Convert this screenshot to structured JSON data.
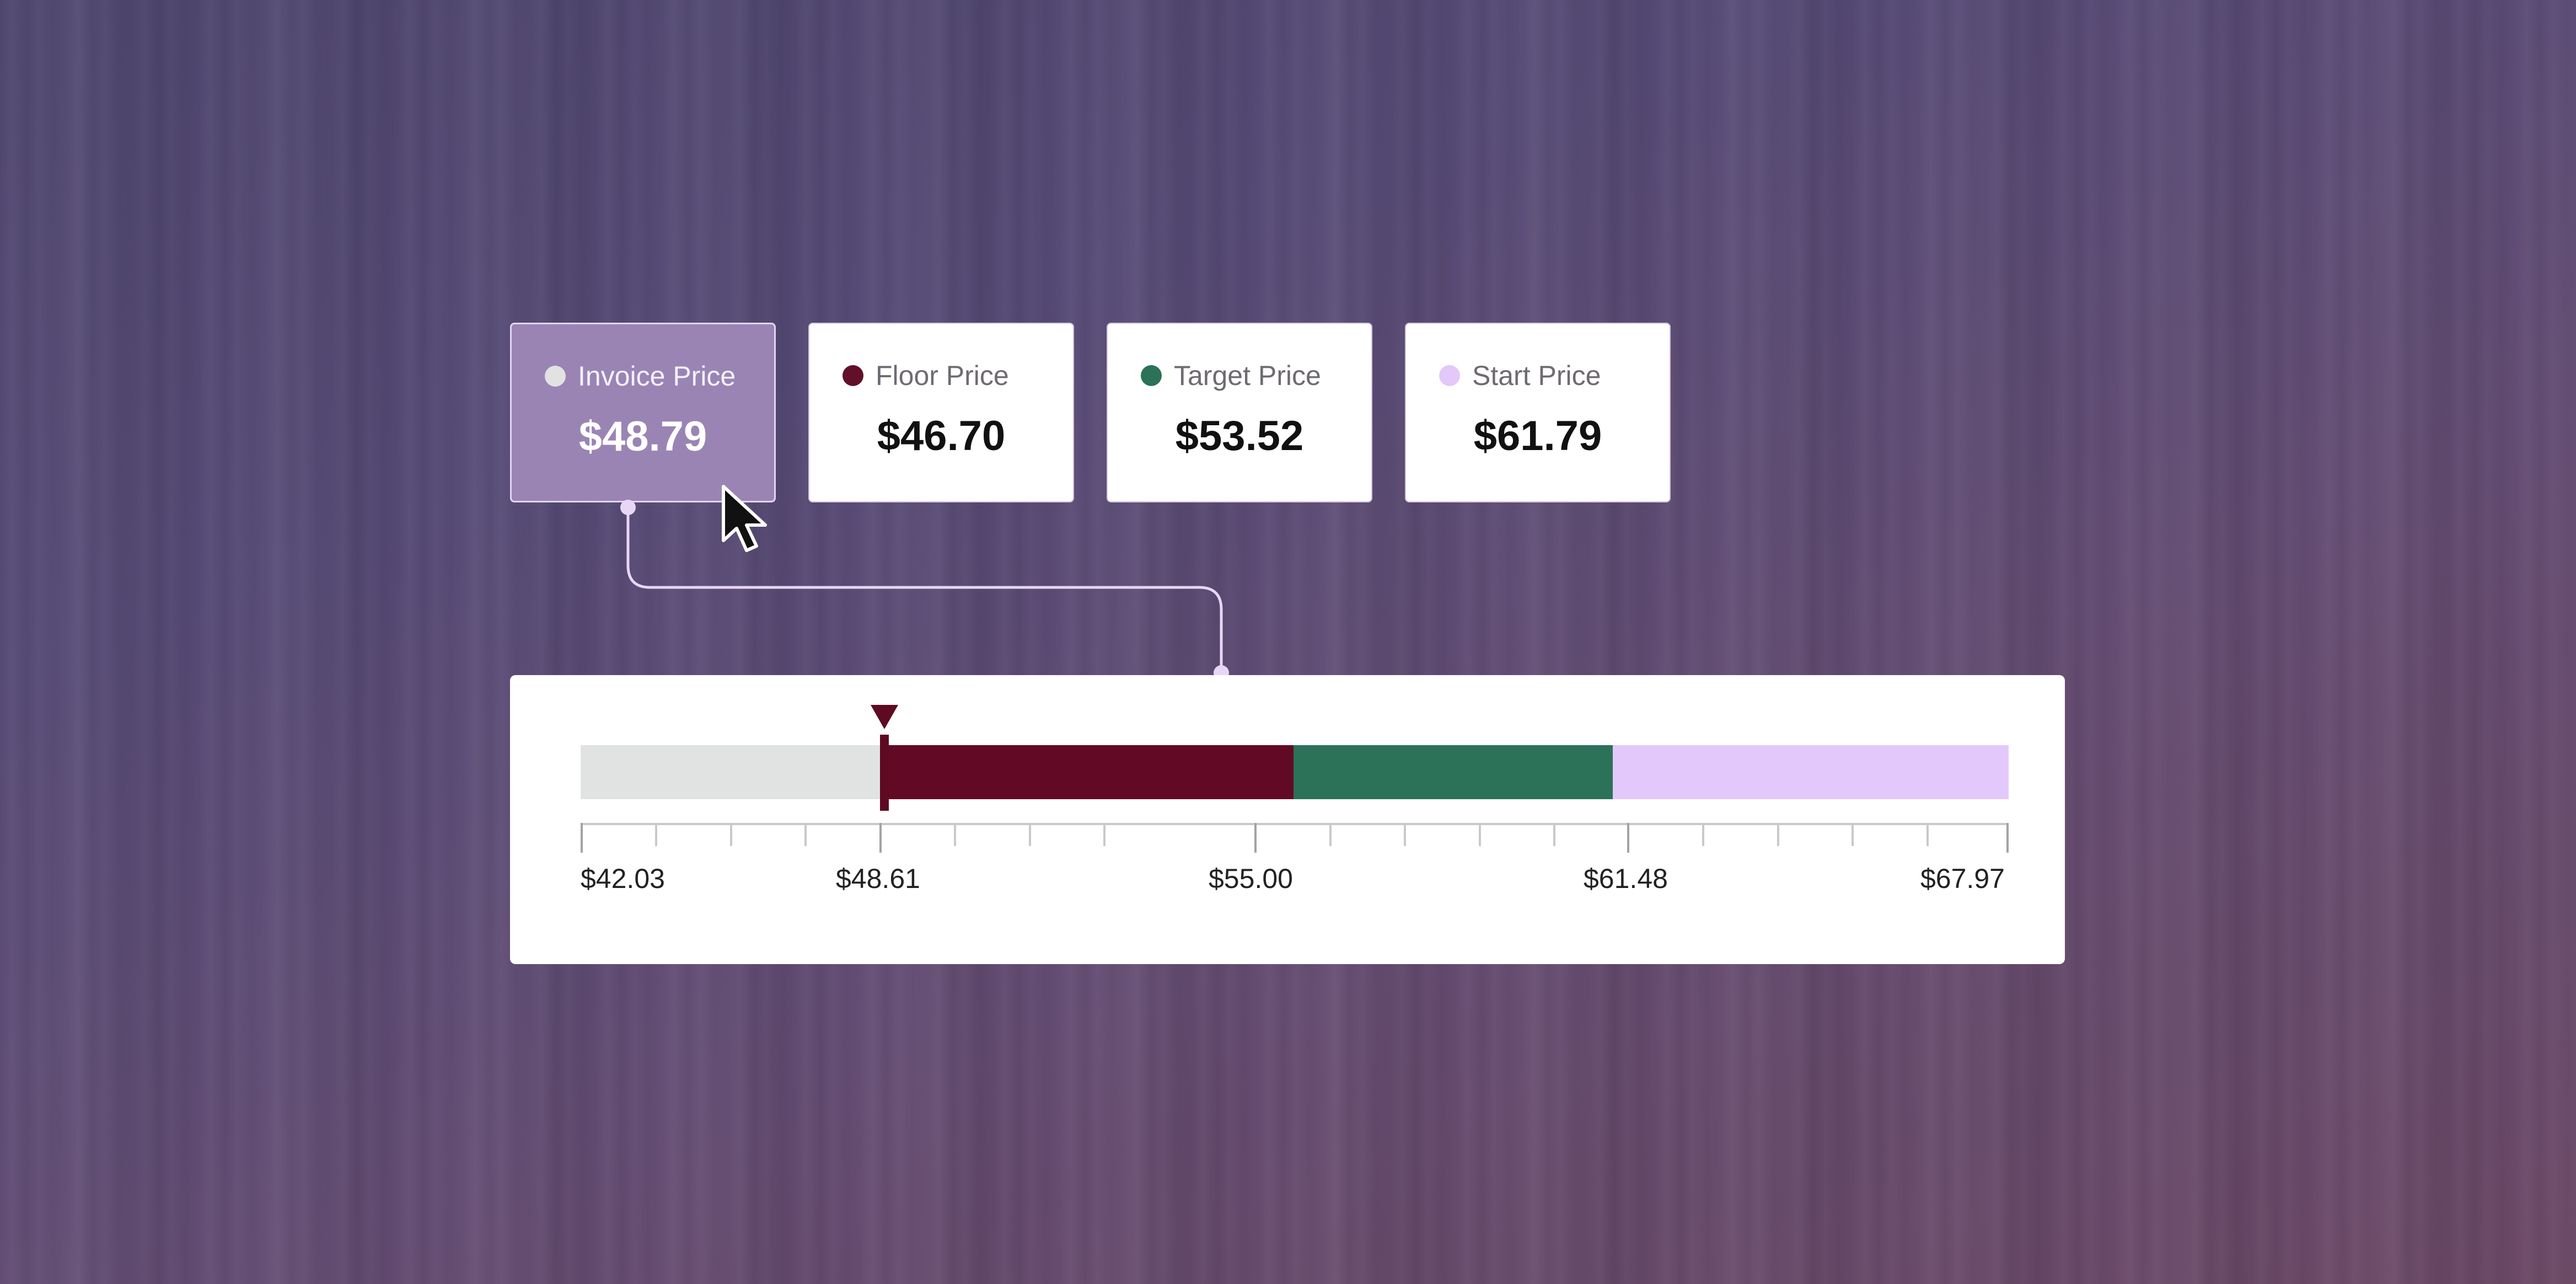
{
  "cards": [
    {
      "label": "Invoice Price",
      "value": "$48.79",
      "dot_color": "#e2e2e2",
      "selected": true
    },
    {
      "label": "Floor Price",
      "value": "$46.70",
      "dot_color": "#62102a",
      "selected": false
    },
    {
      "label": "Target Price",
      "value": "$53.52",
      "dot_color": "#2b7259",
      "selected": false
    },
    {
      "label": "Start Price",
      "value": "$61.79",
      "dot_color": "#e3c8f9",
      "selected": false
    }
  ],
  "range": {
    "segments": [
      {
        "name": "below-floor",
        "color": "#e1e3e2"
      },
      {
        "name": "floor-to-target",
        "color": "#620a25"
      },
      {
        "name": "target-to-start",
        "color": "#2b7259"
      },
      {
        "name": "above-start",
        "color": "#e3c9fb"
      }
    ],
    "tick_labels": [
      "$42.03",
      "$48.61",
      "$55.00",
      "$61.48",
      "$67.97"
    ],
    "marker_color": "#5d0a22"
  },
  "colors": {
    "connector": "#e7d6f6",
    "selected_card": "#9a84b4"
  },
  "icons": {
    "cursor": "mouse-pointer-icon",
    "marker": "triangle-down-icon"
  }
}
